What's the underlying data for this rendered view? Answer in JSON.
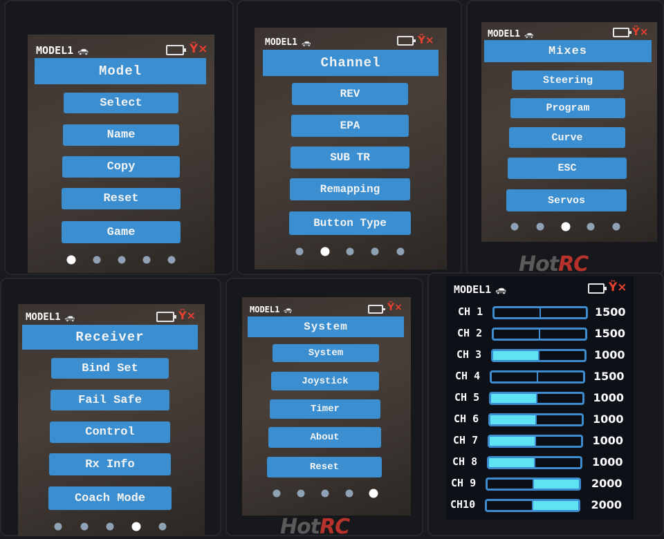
{
  "status": {
    "model_name": "MODEL1",
    "model_icon": "car-icon",
    "battery_icon": "battery-icon",
    "signal_icon": "antenna-no-signal-icon",
    "signal_color": "#e8412f",
    "accent": "#3b8fd0"
  },
  "brand": {
    "logo_text": "HotRC"
  },
  "screens": [
    {
      "title": "Model",
      "items": [
        "Select",
        "Name",
        "Copy",
        "Reset",
        "Game"
      ],
      "page_count": 5,
      "active_page": 1
    },
    {
      "title": "Channel",
      "items": [
        "REV",
        "EPA",
        "SUB TR",
        "Remapping",
        "Button Type"
      ],
      "page_count": 5,
      "active_page": 2
    },
    {
      "title": "Mixes",
      "items": [
        "Steering",
        "Program",
        "Curve",
        "ESC",
        "Servos"
      ],
      "page_count": 5,
      "active_page": 3
    },
    {
      "title": "Receiver",
      "items": [
        "Bind Set",
        "Fail Safe",
        "Control",
        "Rx Info",
        "Coach Mode"
      ],
      "page_count": 5,
      "active_page": 4
    },
    {
      "title": "System",
      "items": [
        "System",
        "Joystick",
        "Timer",
        "About",
        "Reset"
      ],
      "page_count": 5,
      "active_page": 5
    }
  ],
  "monitor": {
    "channels": [
      {
        "label": "CH 1",
        "value": "1500"
      },
      {
        "label": "CH 2",
        "value": "1500"
      },
      {
        "label": "CH 3",
        "value": "1000"
      },
      {
        "label": "CH 4",
        "value": "1500"
      },
      {
        "label": "CH 5",
        "value": "1000"
      },
      {
        "label": "CH 6",
        "value": "1000"
      },
      {
        "label": "CH 7",
        "value": "1000"
      },
      {
        "label": "CH 8",
        "value": "1000"
      },
      {
        "label": "CH 9",
        "value": "2000"
      },
      {
        "label": "CH10",
        "value": "2000"
      }
    ],
    "fill_color": "#5fe3f4"
  }
}
